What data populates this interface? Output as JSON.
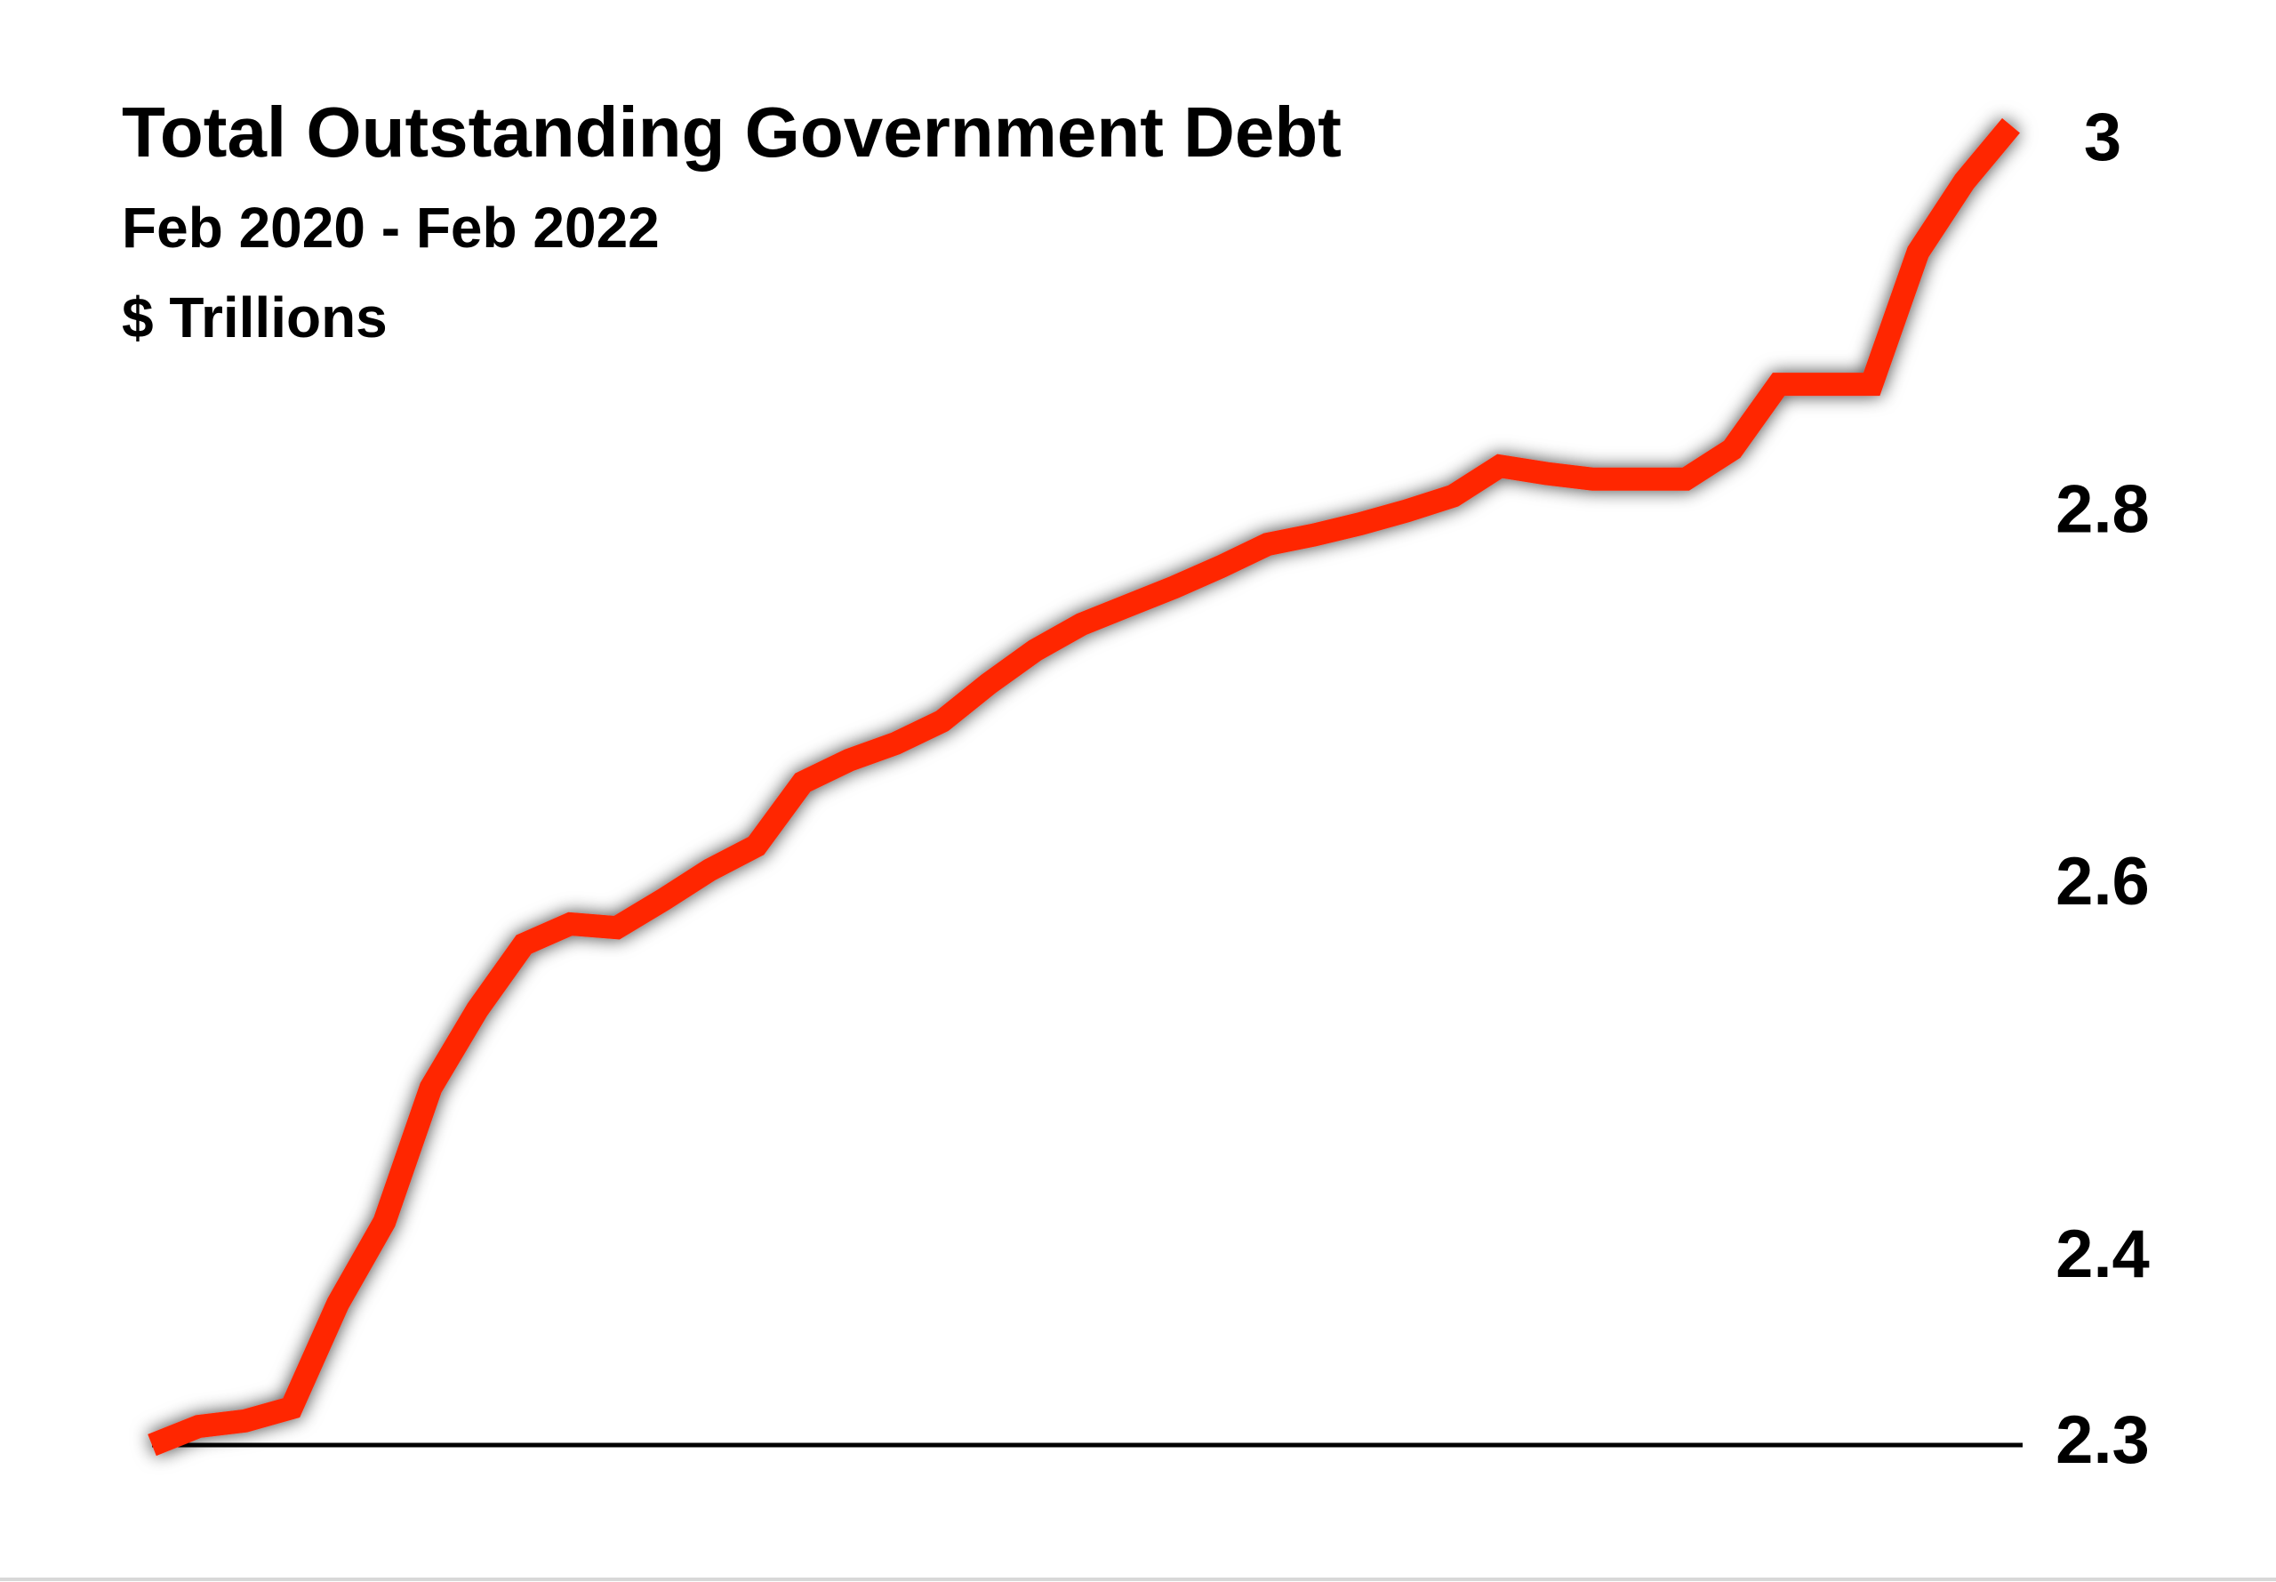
{
  "chart_data": {
    "type": "line",
    "title": "Total Outstanding Government Debt",
    "subtitle": "Feb 2020 - Feb 2022",
    "y_axis_label": "$ Trillions",
    "series": [
      {
        "color": "#ff2600",
        "values": [
          2.3,
          2.31,
          2.313,
          2.32,
          2.376,
          2.42,
          2.492,
          2.534,
          2.569,
          2.58,
          2.578,
          2.593,
          2.609,
          2.622,
          2.656,
          2.668,
          2.677,
          2.689,
          2.709,
          2.727,
          2.741,
          2.751,
          2.761,
          2.772,
          2.784,
          2.789,
          2.795,
          2.802,
          2.81,
          2.826,
          2.822,
          2.819,
          2.819,
          2.819,
          2.835,
          2.87,
          2.87,
          2.87,
          2.941,
          2.979,
          3.009
        ]
      }
    ],
    "ylim": [
      2.3,
      3.0
    ],
    "yticks": [
      2.3,
      2.4,
      2.6,
      2.8,
      3
    ],
    "y_axis_side": "right",
    "baseline": true,
    "grid": false
  }
}
